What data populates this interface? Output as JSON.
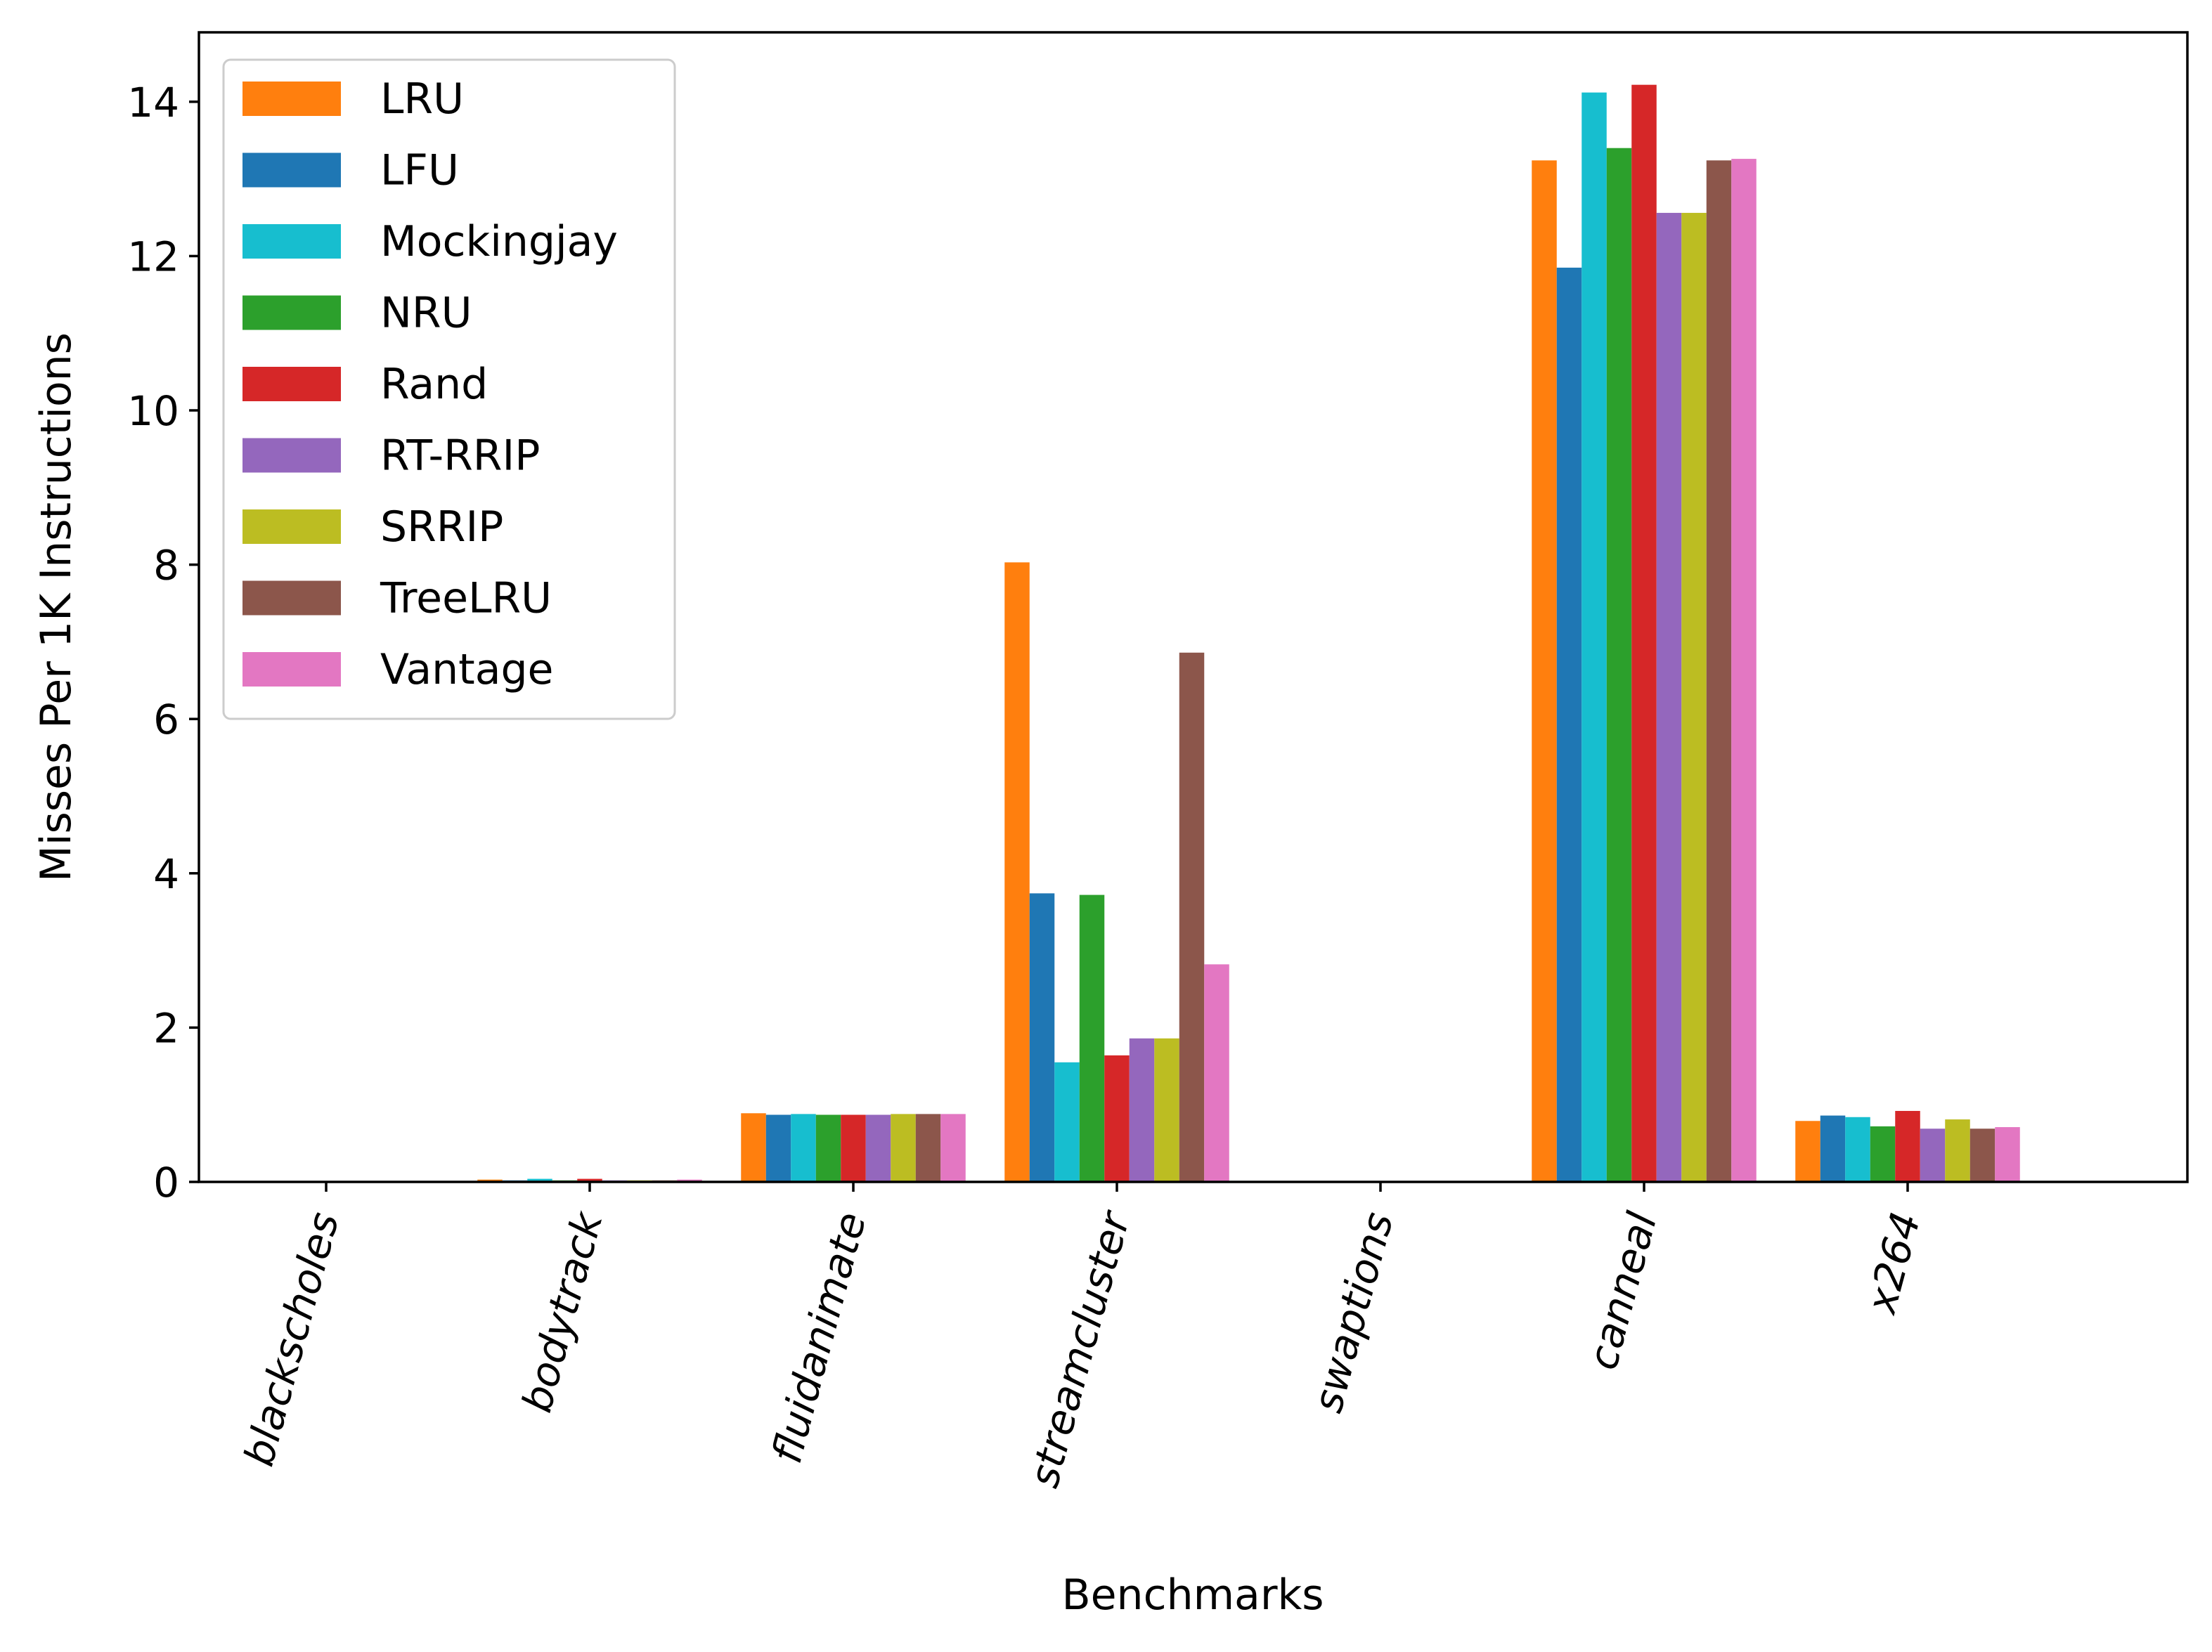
{
  "chart_data": {
    "type": "bar",
    "xlabel": "Benchmarks",
    "ylabel": "Misses Per 1K Instructions",
    "ylim": [
      0,
      14.9
    ],
    "yticks": [
      0,
      2,
      4,
      6,
      8,
      10,
      12,
      14
    ],
    "grid": false,
    "legend_position": "top-left",
    "categories": [
      "blackscholes",
      "bodytrack",
      "fluidanimate",
      "streamcluster",
      "swaptions",
      "canneal",
      "x264"
    ],
    "series": [
      {
        "name": "LRU",
        "color": "#ff7f0e",
        "values": [
          0.0,
          0.03,
          0.89,
          8.03,
          0.0,
          13.24,
          0.79
        ]
      },
      {
        "name": "LFU",
        "color": "#1f77b4",
        "values": [
          0.0,
          0.02,
          0.87,
          3.74,
          0.0,
          11.85,
          0.86
        ]
      },
      {
        "name": "Mockingjay",
        "color": "#17becf",
        "values": [
          0.0,
          0.04,
          0.88,
          1.55,
          0.0,
          14.12,
          0.84
        ]
      },
      {
        "name": "NRU",
        "color": "#2ca02c",
        "values": [
          0.0,
          0.02,
          0.87,
          3.72,
          0.0,
          13.4,
          0.72
        ]
      },
      {
        "name": "Rand",
        "color": "#d62728",
        "values": [
          0.0,
          0.04,
          0.87,
          1.64,
          0.0,
          14.22,
          0.92
        ]
      },
      {
        "name": "RT-RRIP",
        "color": "#9467bd",
        "values": [
          0.0,
          0.02,
          0.87,
          1.86,
          0.0,
          12.56,
          0.69
        ]
      },
      {
        "name": "SRRIP",
        "color": "#bcbd22",
        "values": [
          0.0,
          0.02,
          0.88,
          1.86,
          0.0,
          12.56,
          0.81
        ]
      },
      {
        "name": "TreeLRU",
        "color": "#8c564b",
        "values": [
          0.0,
          0.02,
          0.88,
          6.86,
          0.0,
          13.24,
          0.69
        ]
      },
      {
        "name": "Vantage",
        "color": "#e377c2",
        "values": [
          0.0,
          0.03,
          0.88,
          2.82,
          0.0,
          13.26,
          0.71
        ]
      }
    ]
  }
}
